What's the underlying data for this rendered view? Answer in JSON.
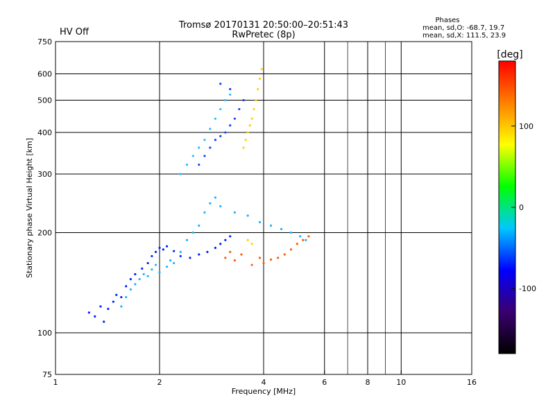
{
  "status": {
    "label": "HV Off",
    "color": "#e01010"
  },
  "title": {
    "line1": "Tromsø 20170131 20:50:00–20:51:43",
    "line2": "RwPretec (8p)"
  },
  "stats": {
    "heading": "Phases",
    "line_o": "mean, sd,O: -68.7, 19.7",
    "line_x": "mean, sd,X: 111.5, 23.9"
  },
  "chart_data": {
    "type": "scatter",
    "title": "Tromsø 20170131 20:50:00–20:51:43",
    "subtitle": "RwPretec (8p)",
    "xlabel": "Frequency [MHz]",
    "ylabel": "Stationary phase Virtual Height [km]",
    "xscale": "log",
    "yscale": "log",
    "xlim": [
      1,
      16
    ],
    "ylim": [
      75,
      750
    ],
    "xticks": [
      1,
      2,
      4,
      6,
      8,
      10,
      16
    ],
    "xtick_labels": [
      "1",
      "2",
      "4",
      "6",
      "8",
      "10",
      "16"
    ],
    "xgrid": [
      2,
      4,
      6,
      8,
      10
    ],
    "xminor": [
      7,
      9
    ],
    "yticks": [
      75,
      100,
      200,
      300,
      400,
      500,
      600,
      750
    ],
    "ytick_labels": [
      "75",
      "100",
      "200",
      "300",
      "400",
      "500",
      "600",
      "750"
    ],
    "ygrid": [
      100,
      200,
      300,
      400,
      500,
      600
    ],
    "grid": true,
    "colorbar": {
      "label": "[deg]",
      "range": [
        -180,
        180
      ],
      "ticks": [
        100,
        0,
        -100
      ],
      "tick_labels": [
        "100",
        "0",
        "-100"
      ],
      "stops": [
        "#000000",
        "#3b0070",
        "#0000ff",
        "#00c8ff",
        "#00ff00",
        "#ffff00",
        "#ff8000",
        "#ff0000"
      ]
    },
    "series": [
      {
        "name": "",
        "color": "#0022ff",
        "phase": -110,
        "x": [
          1.25,
          1.3,
          1.35,
          1.38,
          1.42,
          1.47,
          1.5,
          1.55,
          1.6,
          1.65,
          1.7,
          1.78,
          1.85,
          1.9,
          1.95,
          2.0,
          2.05,
          2.1,
          2.2,
          2.3,
          2.45,
          2.6,
          2.75,
          2.9,
          3.0,
          3.1,
          3.2
        ],
        "y": [
          115,
          112,
          120,
          108,
          118,
          124,
          130,
          128,
          138,
          145,
          150,
          156,
          162,
          170,
          175,
          180,
          178,
          182,
          176,
          170,
          168,
          172,
          175,
          180,
          185,
          190,
          195
        ]
      },
      {
        "name": "",
        "color": "#1ab4ff",
        "phase": -60,
        "x": [
          1.55,
          1.6,
          1.65,
          1.7,
          1.75,
          1.8,
          1.85,
          1.9,
          1.95,
          2.0,
          2.1,
          2.15,
          2.2,
          2.3,
          2.4,
          2.5,
          2.6,
          2.7,
          2.8,
          2.9,
          3.0,
          3.3,
          3.6,
          3.9,
          4.2,
          4.5,
          4.8,
          5.1,
          5.3
        ],
        "y": [
          120,
          128,
          135,
          140,
          145,
          150,
          148,
          155,
          160,
          152,
          158,
          165,
          162,
          175,
          190,
          200,
          210,
          230,
          245,
          255,
          240,
          230,
          225,
          215,
          210,
          205,
          200,
          195,
          190
        ]
      },
      {
        "name": "",
        "color": "#ff5a00",
        "phase": 150,
        "x": [
          3.1,
          3.2,
          3.3,
          3.45,
          3.7,
          3.9,
          4.0,
          4.2,
          4.4,
          4.6,
          4.8,
          5.0,
          5.2,
          5.4
        ],
        "y": [
          168,
          175,
          165,
          172,
          160,
          168,
          162,
          166,
          168,
          172,
          178,
          185,
          190,
          195
        ]
      },
      {
        "name": "",
        "color": "#ffd200",
        "phase": 105,
        "x": [
          3.5,
          3.55,
          3.6,
          3.65,
          3.7,
          3.75,
          3.8,
          3.85,
          3.9,
          3.95,
          3.6,
          3.7
        ],
        "y": [
          360,
          380,
          400,
          420,
          440,
          470,
          500,
          540,
          580,
          620,
          190,
          185
        ]
      },
      {
        "name": "",
        "color": "#1a3cff",
        "phase": -100,
        "x": [
          2.6,
          2.7,
          2.8,
          2.9,
          3.0,
          3.1,
          3.2,
          3.3,
          3.4,
          3.5,
          3.0,
          3.2
        ],
        "y": [
          320,
          340,
          360,
          380,
          390,
          400,
          420,
          440,
          470,
          500,
          560,
          540
        ]
      },
      {
        "name": "",
        "color": "#20bfff",
        "phase": -55,
        "x": [
          2.3,
          2.4,
          2.5,
          2.6,
          2.7,
          2.8,
          2.9,
          3.0,
          3.1,
          3.2
        ],
        "y": [
          300,
          320,
          340,
          360,
          380,
          410,
          440,
          470,
          500,
          520
        ]
      }
    ]
  }
}
